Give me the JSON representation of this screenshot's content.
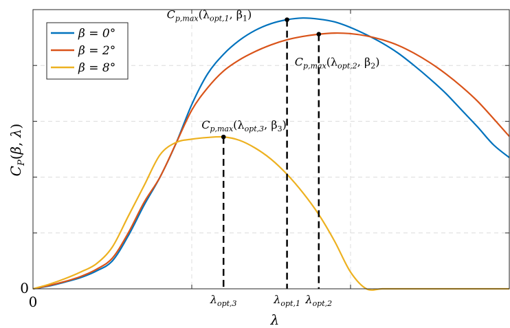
{
  "chart_data": {
    "type": "line",
    "title": "",
    "xlabel": "λ",
    "ylabel": "C_P(β, λ)",
    "xlim": [
      0,
      15
    ],
    "ylim": [
      0,
      0.5
    ],
    "grid": true,
    "legend_position": "top-left",
    "x_ticks": [
      0,
      5,
      10
    ],
    "x_tick_labels": [
      "0",
      "",
      ""
    ],
    "y_ticks": [
      0,
      0.1,
      0.2,
      0.3,
      0.4,
      0.5
    ],
    "y_tick_labels": [
      "0",
      "",
      "",
      "",
      "",
      ""
    ],
    "series": [
      {
        "name": "β = 0°",
        "color": "#0072BD",
        "x": [
          0,
          0.5,
          1,
          1.5,
          2,
          2.5,
          3,
          3.5,
          4,
          4.5,
          5,
          5.5,
          6,
          6.5,
          7,
          7.5,
          8,
          8.5,
          9,
          9.5,
          10,
          10.5,
          11,
          11.5,
          12,
          12.5,
          13,
          13.5,
          14,
          14.5,
          15
        ],
        "values": [
          0,
          0.005,
          0.012,
          0.02,
          0.032,
          0.05,
          0.095,
          0.15,
          0.2,
          0.26,
          0.33,
          0.385,
          0.42,
          0.445,
          0.463,
          0.475,
          0.482,
          0.485,
          0.483,
          0.478,
          0.468,
          0.455,
          0.44,
          0.422,
          0.4,
          0.376,
          0.35,
          0.32,
          0.29,
          0.258,
          0.235
        ]
      },
      {
        "name": "β = 2°",
        "color": "#D95319",
        "x": [
          0,
          0.5,
          1,
          1.5,
          2,
          2.5,
          3,
          3.5,
          4,
          4.5,
          5,
          5.5,
          6,
          6.5,
          7,
          7.5,
          8,
          8.5,
          9,
          9.5,
          10,
          10.5,
          11,
          11.5,
          12,
          12.5,
          13,
          13.5,
          14,
          14.5,
          15
        ],
        "values": [
          0,
          0.006,
          0.013,
          0.022,
          0.035,
          0.055,
          0.1,
          0.155,
          0.2,
          0.26,
          0.32,
          0.36,
          0.39,
          0.41,
          0.425,
          0.437,
          0.446,
          0.452,
          0.456,
          0.458,
          0.457,
          0.453,
          0.446,
          0.436,
          0.422,
          0.405,
          0.385,
          0.362,
          0.336,
          0.305,
          0.273
        ]
      },
      {
        "name": "β = 8°",
        "color": "#EDB120",
        "x": [
          0,
          0.5,
          1,
          1.5,
          2,
          2.5,
          3,
          3.5,
          4,
          4.5,
          5,
          5.5,
          6,
          6.5,
          7,
          7.5,
          8,
          8.5,
          9,
          9.5,
          10,
          10.5,
          11,
          11.5,
          12,
          12.5,
          13,
          13.5,
          14,
          14.5,
          15
        ],
        "values": [
          0,
          0.008,
          0.018,
          0.03,
          0.045,
          0.075,
          0.13,
          0.185,
          0.24,
          0.262,
          0.268,
          0.271,
          0.272,
          0.266,
          0.252,
          0.232,
          0.205,
          0.172,
          0.133,
          0.085,
          0.03,
          0,
          0,
          0,
          0,
          0,
          0,
          0,
          0,
          0,
          0
        ]
      }
    ],
    "optimal_points": [
      {
        "label_main": "C",
        "label_sub": "p,max",
        "label_args": "(λ",
        "label_args_sub": "opt,3",
        "label_beta": ", β",
        "label_beta_sub": "3",
        "label_close": ")",
        "tick_label": "λ",
        "tick_sub": "opt,3",
        "x": 6.0,
        "y": 0.272,
        "series": 2
      },
      {
        "label_main": "C",
        "label_sub": "p,max",
        "label_args": "(λ",
        "label_args_sub": "opt,1",
        "label_beta": ", β",
        "label_beta_sub": "1",
        "label_close": ")",
        "tick_label": "λ",
        "tick_sub": "opt,1",
        "x": 8.0,
        "y": 0.482,
        "series": 0
      },
      {
        "label_main": "C",
        "label_sub": "p,max",
        "label_args": "(λ",
        "label_args_sub": "opt,2",
        "label_beta": ", β",
        "label_beta_sub": "2",
        "label_close": ")",
        "tick_label": "λ",
        "tick_sub": "opt,2",
        "x": 9.0,
        "y": 0.456,
        "series": 1
      }
    ]
  }
}
